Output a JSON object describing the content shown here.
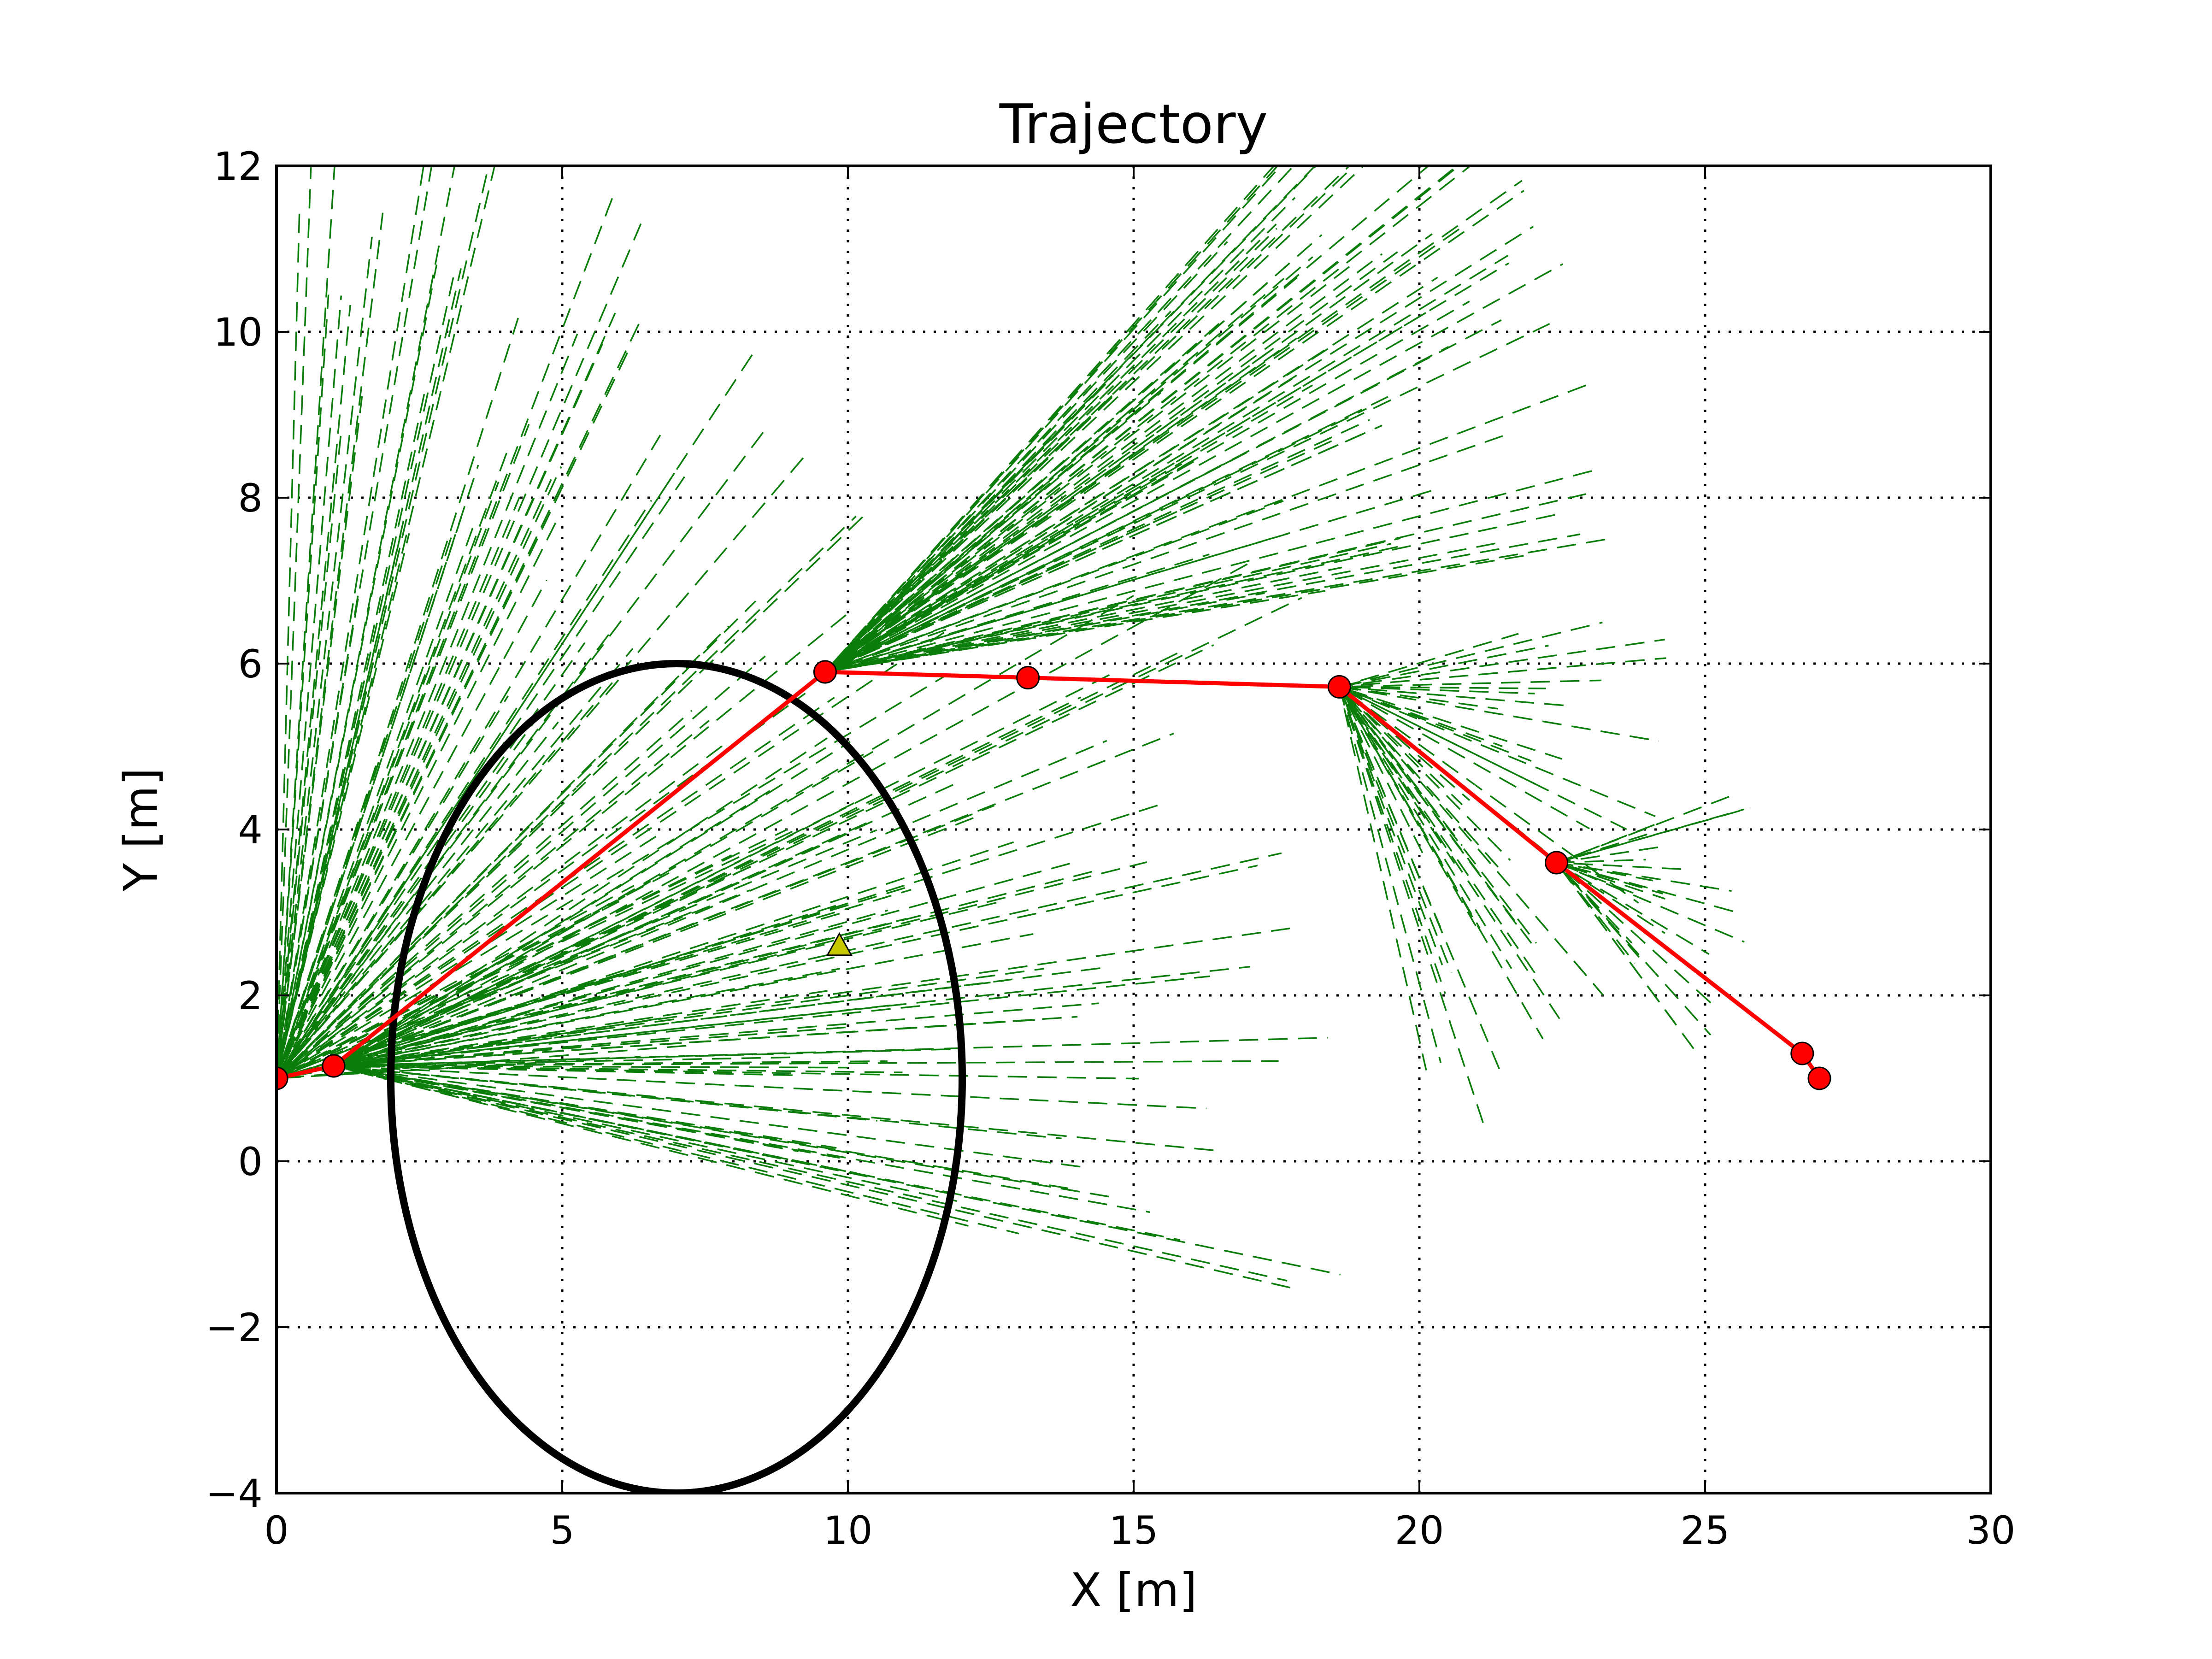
{
  "chart_data": {
    "type": "line",
    "title": "Trajectory",
    "xlabel": "X [m]",
    "ylabel": "Y [m]",
    "xlim": [
      0,
      30
    ],
    "ylim": [
      -4,
      12
    ],
    "grid": true,
    "xticks": [
      0,
      5,
      10,
      15,
      20,
      25,
      30
    ],
    "yticks": [
      -4,
      -2,
      0,
      2,
      4,
      6,
      8,
      10,
      12
    ],
    "xtick_labels": [
      "0",
      "5",
      "10",
      "15",
      "20",
      "25",
      "30"
    ],
    "ytick_labels": [
      "−4",
      "−2",
      "0",
      "2",
      "4",
      "6",
      "8",
      "10",
      "12"
    ],
    "series": [
      {
        "name": "path",
        "color": "#ff0000",
        "marker": "circle",
        "x": [
          0.0,
          1.0,
          9.6,
          13.15,
          18.6,
          22.4,
          26.7,
          27.0
        ],
        "y": [
          1.0,
          1.15,
          5.9,
          5.83,
          5.72,
          3.6,
          1.3,
          1.0
        ]
      }
    ],
    "obstacle": {
      "shape": "ellipse",
      "center": [
        7.0,
        1.0
      ],
      "radius_x": 5.0,
      "radius_y": 5.0,
      "color": "#000000"
    },
    "goal_marker": {
      "shape": "triangle",
      "x": 9.85,
      "y": 2.6,
      "color": "#c8c800"
    },
    "sample_fans": {
      "color": "#0a7d0a",
      "style": "dashed",
      "groups": [
        {
          "origin": [
            0.0,
            1.0
          ],
          "count": 90,
          "angle_min_deg": 2,
          "angle_max_deg": 88,
          "length_min": 6,
          "length_max": 13
        },
        {
          "origin": [
            1.0,
            1.15
          ],
          "count": 70,
          "angle_min_deg": -10,
          "angle_max_deg": 25,
          "length_min": 8,
          "length_max": 18
        },
        {
          "origin": [
            9.6,
            5.9
          ],
          "count": 80,
          "angle_min_deg": 5,
          "angle_max_deg": 38,
          "length_min": 6,
          "length_max": 14
        },
        {
          "origin": [
            18.6,
            5.72
          ],
          "count": 45,
          "angle_min_deg": -75,
          "angle_max_deg": 12,
          "length_min": 2.5,
          "length_max": 6
        },
        {
          "origin": [
            22.4,
            3.6
          ],
          "count": 25,
          "angle_min_deg": -45,
          "angle_max_deg": 15,
          "length_min": 1.5,
          "length_max": 3.5
        }
      ]
    }
  }
}
